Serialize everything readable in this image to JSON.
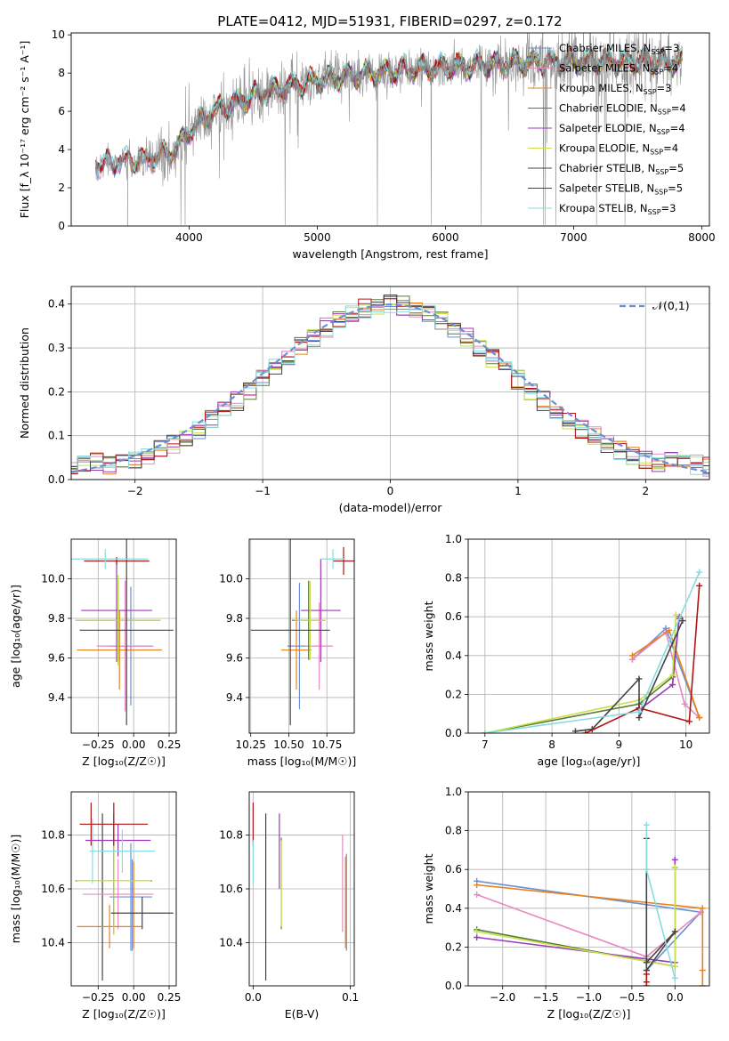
{
  "figure_title": "PLATE=0412, MJD=51931, FIBERID=0297, z=0.172",
  "colors": {
    "Chabrier MILES": "#6b8fd6",
    "Salpeter MILES": "#e889c0",
    "Kroupa MILES": "#e8821f",
    "Chabrier ELODIE": "#5a7a3a",
    "Salpeter ELODIE": "#9a3ab8",
    "Kroupa ELODIE": "#c8e04a",
    "Chabrier STELIB": "#444444",
    "Salpeter STELIB": "#b01414",
    "Kroupa STELIB": "#84dde0",
    "data_spectrum": "#888888",
    "normal_curve": "#6b8fd6"
  },
  "chart_data": [
    {
      "id": "spectrum",
      "type": "line",
      "xlabel": "wavelength [Angstrom, rest frame]",
      "ylabel": "Flux [f_λ 10⁻¹⁷ erg cm⁻² s⁻¹ A⁻¹]",
      "xlim": [
        3080,
        8060
      ],
      "ylim": [
        0,
        10.1
      ],
      "xticks": [
        4000,
        5000,
        6000,
        7000,
        8000
      ],
      "yticks": [
        0,
        2,
        4,
        6,
        8,
        10
      ],
      "grid": false,
      "legend_position": "top-right",
      "legend": [
        {
          "label": "Chabrier MILES, N",
          "sub": "SSP",
          "val": "=3"
        },
        {
          "label": "Salpeter MILES, N",
          "sub": "SSP",
          "val": "=4"
        },
        {
          "label": "Kroupa MILES, N",
          "sub": "SSP",
          "val": "=3"
        },
        {
          "label": "Chabrier ELODIE, N",
          "sub": "SSP",
          "val": "=4"
        },
        {
          "label": "Salpeter ELODIE, N",
          "sub": "SSP",
          "val": "=4"
        },
        {
          "label": "Kroupa ELODIE, N",
          "sub": "SSP",
          "val": "=4"
        },
        {
          "label": "Chabrier STELIB, N",
          "sub": "SSP",
          "val": "=5"
        },
        {
          "label": "Salpeter STELIB, N",
          "sub": "SSP",
          "val": "=5"
        },
        {
          "label": "Kroupa STELIB, N",
          "sub": "SSP",
          "val": "=3"
        }
      ],
      "continuum": [
        [
          3270,
          3.2
        ],
        [
          3500,
          3.4
        ],
        [
          3700,
          3.5
        ],
        [
          3900,
          4.0
        ],
        [
          4000,
          5.0
        ],
        [
          4200,
          6.0
        ],
        [
          4500,
          6.8
        ],
        [
          4800,
          7.3
        ],
        [
          5000,
          7.6
        ],
        [
          5300,
          7.9
        ],
        [
          5600,
          8.1
        ],
        [
          6000,
          8.3
        ],
        [
          6300,
          8.4
        ],
        [
          6600,
          8.55
        ],
        [
          7000,
          8.6
        ],
        [
          7400,
          8.6
        ],
        [
          7850,
          8.55
        ]
      ],
      "noise_amplitude": [
        [
          3270,
          0.3
        ],
        [
          3800,
          1.2
        ],
        [
          4400,
          1.4
        ],
        [
          5000,
          1.0
        ],
        [
          6000,
          0.8
        ],
        [
          6600,
          1.2
        ],
        [
          7000,
          1.8
        ],
        [
          7850,
          1.2
        ]
      ],
      "data_range": [
        3270,
        7850
      ]
    },
    {
      "id": "residuals",
      "type": "histogram",
      "xlabel": "(data-model)/error",
      "ylabel": "Normed distribution",
      "xlim": [
        -2.5,
        2.5
      ],
      "ylim": [
        0,
        0.44
      ],
      "xticks": [
        -2,
        -1,
        0,
        1,
        2
      ],
      "yticks": [
        0.0,
        0.1,
        0.2,
        0.3,
        0.4
      ],
      "grid": true,
      "legend_position": "top-right",
      "legend_label": "𝒩(0,1)",
      "bin_width": 0.1
    },
    {
      "id": "age_vs_Z",
      "type": "errorbar",
      "xlabel": "Z [log₁₀(Z/Z☉)]",
      "ylabel": "age  [log₁₀(age/yr)]",
      "xlim": [
        -0.44,
        0.3
      ],
      "ylim": [
        9.22,
        10.2
      ],
      "xticks": [
        -0.25,
        0.0,
        0.25
      ],
      "yticks": [
        9.4,
        9.6,
        9.8,
        10.0
      ],
      "grid": true,
      "points": [
        {
          "model": "Chabrier MILES",
          "x": -0.02,
          "xerr": 0.15,
          "y": 9.66,
          "yerr": 0.3
        },
        {
          "model": "Salpeter MILES",
          "x": -0.06,
          "xerr": 0.2,
          "y": 9.66,
          "yerr": 0.33
        },
        {
          "model": "Kroupa MILES",
          "x": -0.1,
          "xerr": 0.3,
          "y": 9.64,
          "yerr": 0.2
        },
        {
          "model": "Chabrier ELODIE",
          "x": -0.11,
          "xerr": 0.3,
          "y": 9.79,
          "yerr": 0.2
        },
        {
          "model": "Salpeter ELODIE",
          "x": -0.12,
          "xerr": 0.25,
          "y": 9.84,
          "yerr": 0.26
        },
        {
          "model": "Kroupa ELODIE",
          "x": -0.11,
          "xerr": 0.3,
          "y": 9.79,
          "yerr": 0.23
        },
        {
          "model": "Chabrier STELIB",
          "x": -0.05,
          "xerr": 0.33,
          "y": 9.74,
          "yerr": 0.48
        },
        {
          "model": "Salpeter STELIB",
          "x": -0.12,
          "xerr": 0.23,
          "y": 10.09,
          "yerr": 0.02
        },
        {
          "model": "Kroupa STELIB",
          "x": -0.2,
          "xerr": 0.3,
          "y": 10.1,
          "yerr": 0.05
        }
      ]
    },
    {
      "id": "age_vs_mass",
      "type": "errorbar",
      "xlabel": "mass [log₁₀(M/M☉)]",
      "ylabel": "",
      "xlim": [
        10.24,
        10.93
      ],
      "ylim": [
        9.22,
        10.2
      ],
      "xticks": [
        10.25,
        10.5,
        10.75
      ],
      "yticks": [
        9.4,
        9.6,
        9.8,
        10.0
      ],
      "grid": true,
      "points": [
        {
          "model": "Chabrier MILES",
          "x": 10.57,
          "xerr": 0.08,
          "y": 9.66,
          "yerr": 0.32
        },
        {
          "model": "Salpeter MILES",
          "x": 10.7,
          "xerr": 0.09,
          "y": 9.66,
          "yerr": 0.22
        },
        {
          "model": "Kroupa MILES",
          "x": 10.55,
          "xerr": 0.1,
          "y": 9.64,
          "yerr": 0.2
        },
        {
          "model": "Chabrier ELODIE",
          "x": 10.63,
          "xerr": 0.11,
          "y": 9.79,
          "yerr": 0.2
        },
        {
          "model": "Salpeter ELODIE",
          "x": 10.71,
          "xerr": 0.13,
          "y": 9.84,
          "yerr": 0.26
        },
        {
          "model": "Kroupa ELODIE",
          "x": 10.64,
          "xerr": 0.1,
          "y": 9.79,
          "yerr": 0.2
        },
        {
          "model": "Chabrier STELIB",
          "x": 10.51,
          "xerr": 0.26,
          "y": 9.74,
          "yerr": 0.48
        },
        {
          "model": "Salpeter STELIB",
          "x": 10.86,
          "xerr": 0.07,
          "y": 10.09,
          "yerr": 0.07
        },
        {
          "model": "Kroupa STELIB",
          "x": 10.79,
          "xerr": 0.08,
          "y": 10.1,
          "yerr": 0.05
        }
      ]
    },
    {
      "id": "weight_vs_age",
      "type": "line",
      "xlabel": "age  [log₁₀(age/yr)]",
      "ylabel": "mass weight",
      "xlim": [
        6.75,
        10.35
      ],
      "ylim": [
        0,
        1.0
      ],
      "xticks": [
        7,
        8,
        9,
        10
      ],
      "yticks": [
        0.0,
        0.2,
        0.4,
        0.6,
        0.8,
        1.0
      ],
      "grid": true,
      "series": [
        {
          "model": "Chabrier MILES",
          "points": [
            [
              9.2,
              0.38
            ],
            [
              9.7,
              0.54
            ],
            [
              10.2,
              0.08
            ]
          ]
        },
        {
          "model": "Salpeter MILES",
          "points": [
            [
              9.2,
              0.38
            ],
            [
              9.7,
              0.52
            ],
            [
              9.98,
              0.15
            ],
            [
              10.2,
              0.08
            ]
          ]
        },
        {
          "model": "Kroupa MILES",
          "points": [
            [
              9.2,
              0.4
            ],
            [
              9.75,
              0.53
            ],
            [
              10.2,
              0.08
            ]
          ]
        },
        {
          "model": "Chabrier ELODIE",
          "points": [
            [
              7.0,
              0.0
            ],
            [
              9.3,
              0.15
            ],
            [
              9.8,
              0.29
            ],
            [
              9.9,
              0.59
            ]
          ]
        },
        {
          "model": "Salpeter ELODIE",
          "points": [
            [
              9.3,
              0.12
            ],
            [
              9.8,
              0.25
            ],
            [
              9.9,
              0.6
            ]
          ]
        },
        {
          "model": "Kroupa ELODIE",
          "points": [
            [
              7.0,
              0.0
            ],
            [
              9.3,
              0.17
            ],
            [
              9.8,
              0.3
            ],
            [
              9.85,
              0.61
            ]
          ]
        },
        {
          "model": "Chabrier STELIB",
          "points": [
            [
              8.35,
              0.01
            ],
            [
              8.6,
              0.02
            ],
            [
              9.3,
              0.28
            ],
            [
              9.3,
              0.08
            ],
            [
              9.95,
              0.58
            ]
          ]
        },
        {
          "model": "Salpeter STELIB",
          "points": [
            [
              8.5,
              0.0
            ],
            [
              9.3,
              0.13
            ],
            [
              10.05,
              0.06
            ],
            [
              10.2,
              0.76
            ]
          ]
        },
        {
          "model": "Kroupa STELIB",
          "points": [
            [
              7.0,
              0.0
            ],
            [
              9.3,
              0.11
            ],
            [
              10.2,
              0.83
            ]
          ]
        }
      ]
    },
    {
      "id": "mass_vs_Z",
      "type": "errorbar",
      "xlabel": "Z [log₁₀(Z/Z☉)]",
      "ylabel": "mass [log₁₀(M/M☉)]",
      "xlim": [
        -0.44,
        0.3
      ],
      "ylim": [
        10.24,
        10.96
      ],
      "xticks": [
        -0.25,
        0.0,
        0.25
      ],
      "yticks": [
        10.4,
        10.6,
        10.8
      ],
      "grid": true,
      "points": [
        {
          "model": "Chabrier MILES",
          "x": -0.02,
          "xerr": 0.15,
          "y": 10.57,
          "yerr": 0.2
        },
        {
          "model": "Salpeter MILES",
          "x": -0.11,
          "xerr": 0.25,
          "y": 10.58,
          "yerr": 0.13
        },
        {
          "model": "Kroupa MILES",
          "x": -0.17,
          "xerr": 0.23,
          "y": 10.46,
          "yerr": 0.08
        },
        {
          "model": "Chabrier ELODIE",
          "x": -0.14,
          "xerr": 0.27,
          "y": 10.63,
          "yerr": 0.2
        },
        {
          "model": "Salpeter ELODIE",
          "x": -0.11,
          "xerr": 0.23,
          "y": 10.78,
          "yerr": 0.06
        },
        {
          "model": "Kroupa ELODIE",
          "x": -0.14,
          "xerr": 0.26,
          "y": 10.63,
          "yerr": 0.2
        },
        {
          "model": "Chabrier STELIB",
          "x": 0.06,
          "xerr": 0.22,
          "y": 10.51,
          "yerr": 0.06
        },
        {
          "model": "Salpeter STELIB",
          "x": -0.14,
          "xerr": 0.24,
          "y": 10.84,
          "yerr": 0.08
        },
        {
          "model": "Kroupa STELIB",
          "x": -0.08,
          "xerr": 0.23,
          "y": 10.74,
          "yerr": 0.08
        }
      ],
      "vertical_lines": [
        {
          "model": "Chabrier STELIB",
          "x": -0.22,
          "y1": 10.26,
          "y2": 10.88
        },
        {
          "model": "Salpeter STELIB",
          "x": -0.3,
          "y1": 10.76,
          "y2": 10.92
        },
        {
          "model": "Kroupa STELIB",
          "x": -0.29,
          "y1": 10.62,
          "y2": 10.86
        },
        {
          "model": "Chabrier MILES",
          "x": -0.01,
          "y1": 10.37,
          "y2": 10.71
        },
        {
          "model": "Kroupa MILES",
          "x": 0.0,
          "y1": 10.38,
          "y2": 10.7
        },
        {
          "model": "Salpeter ELODIE",
          "x": -0.14,
          "y1": 10.5,
          "y2": 10.88
        },
        {
          "model": "Chabrier ELODIE",
          "x": -0.14,
          "y1": 10.45,
          "y2": 10.8
        }
      ]
    },
    {
      "id": "mass_vs_EBV",
      "type": "errorbar",
      "xlabel": "E(B-V)",
      "ylabel": "",
      "xlim": [
        -0.004,
        0.104
      ],
      "ylim": [
        10.24,
        10.96
      ],
      "xticks": [
        0.0,
        0.1
      ],
      "yticks": [
        10.4,
        10.6,
        10.8
      ],
      "grid": true,
      "points": [
        {
          "model": "Salpeter STELIB",
          "x": 0.0,
          "xerr": 0,
          "y": 10.84,
          "yerr": 0.08
        },
        {
          "model": "Kroupa STELIB",
          "x": 0.0,
          "xerr": 0,
          "y": 10.7,
          "yerr": 0.08
        },
        {
          "model": "Chabrier STELIB",
          "x": 0.013,
          "xerr": 0,
          "y": 10.57,
          "yerr": 0.31
        },
        {
          "model": "Salpeter ELODIE",
          "x": 0.027,
          "xerr": 0,
          "y": 10.74,
          "yerr": 0.14
        },
        {
          "model": "Chabrier ELODIE",
          "x": 0.029,
          "xerr": 0,
          "y": 10.62,
          "yerr": 0.17
        },
        {
          "model": "Kroupa ELODIE",
          "x": 0.029,
          "xerr": 0,
          "y": 10.62,
          "yerr": 0.16
        },
        {
          "model": "Salpeter MILES",
          "x": 0.092,
          "xerr": 0,
          "y": 10.62,
          "yerr": 0.18
        },
        {
          "model": "Kroupa MILES",
          "x": 0.095,
          "xerr": 0,
          "y": 10.55,
          "yerr": 0.17
        },
        {
          "model": "Chabrier MILES",
          "x": 0.096,
          "xerr": 0,
          "y": 10.55,
          "yerr": 0.18
        }
      ]
    },
    {
      "id": "weight_vs_Z",
      "type": "line",
      "xlabel": "Z [log₁₀(Z/Z☉)]",
      "ylabel": "mass weight",
      "xlim": [
        -2.4,
        0.4
      ],
      "ylim": [
        0,
        1.0
      ],
      "xticks": [
        -2.0,
        -1.5,
        -1.0,
        -0.5,
        0.0
      ],
      "yticks": [
        0.0,
        0.2,
        0.4,
        0.6,
        0.8,
        1.0
      ],
      "grid": true,
      "series": [
        {
          "model": "Chabrier MILES",
          "points": [
            [
              -2.3,
              0.54
            ],
            [
              0.3,
              0.38
            ],
            [
              -0.33,
              0.08
            ]
          ]
        },
        {
          "model": "Salpeter MILES",
          "points": [
            [
              -2.3,
              0.47
            ],
            [
              -0.33,
              0.15
            ],
            [
              0.3,
              0.38
            ]
          ]
        },
        {
          "model": "Kroupa MILES",
          "points": [
            [
              -2.3,
              0.52
            ],
            [
              0.32,
              0.4
            ],
            [
              0.32,
              0.08
            ],
            [
              0.32,
              0.0
            ]
          ]
        },
        {
          "model": "Chabrier ELODIE",
          "points": [
            [
              -2.3,
              0.29
            ],
            [
              0.0,
              0.1
            ],
            [
              0.0,
              0.61
            ]
          ]
        },
        {
          "model": "Salpeter ELODIE",
          "points": [
            [
              -2.3,
              0.25
            ],
            [
              0.0,
              0.12
            ],
            [
              0.0,
              0.65
            ]
          ]
        },
        {
          "model": "Kroupa ELODIE",
          "points": [
            [
              -2.3,
              0.28
            ],
            [
              0.0,
              0.1
            ],
            [
              0.0,
              0.61
            ]
          ]
        },
        {
          "model": "Chabrier STELIB",
          "points": [
            [
              -0.33,
              0.76
            ],
            [
              -0.33,
              0.08
            ],
            [
              0.0,
              0.28
            ],
            [
              -0.33,
              0.12
            ]
          ]
        },
        {
          "model": "Salpeter STELIB",
          "points": [
            [
              -0.33,
              0.0
            ],
            [
              -0.33,
              0.02
            ],
            [
              -0.33,
              0.06
            ]
          ]
        },
        {
          "model": "Kroupa STELIB",
          "points": [
            [
              -0.33,
              0.83
            ],
            [
              -0.33,
              0.6
            ],
            [
              0.0,
              0.04
            ]
          ]
        }
      ]
    }
  ]
}
